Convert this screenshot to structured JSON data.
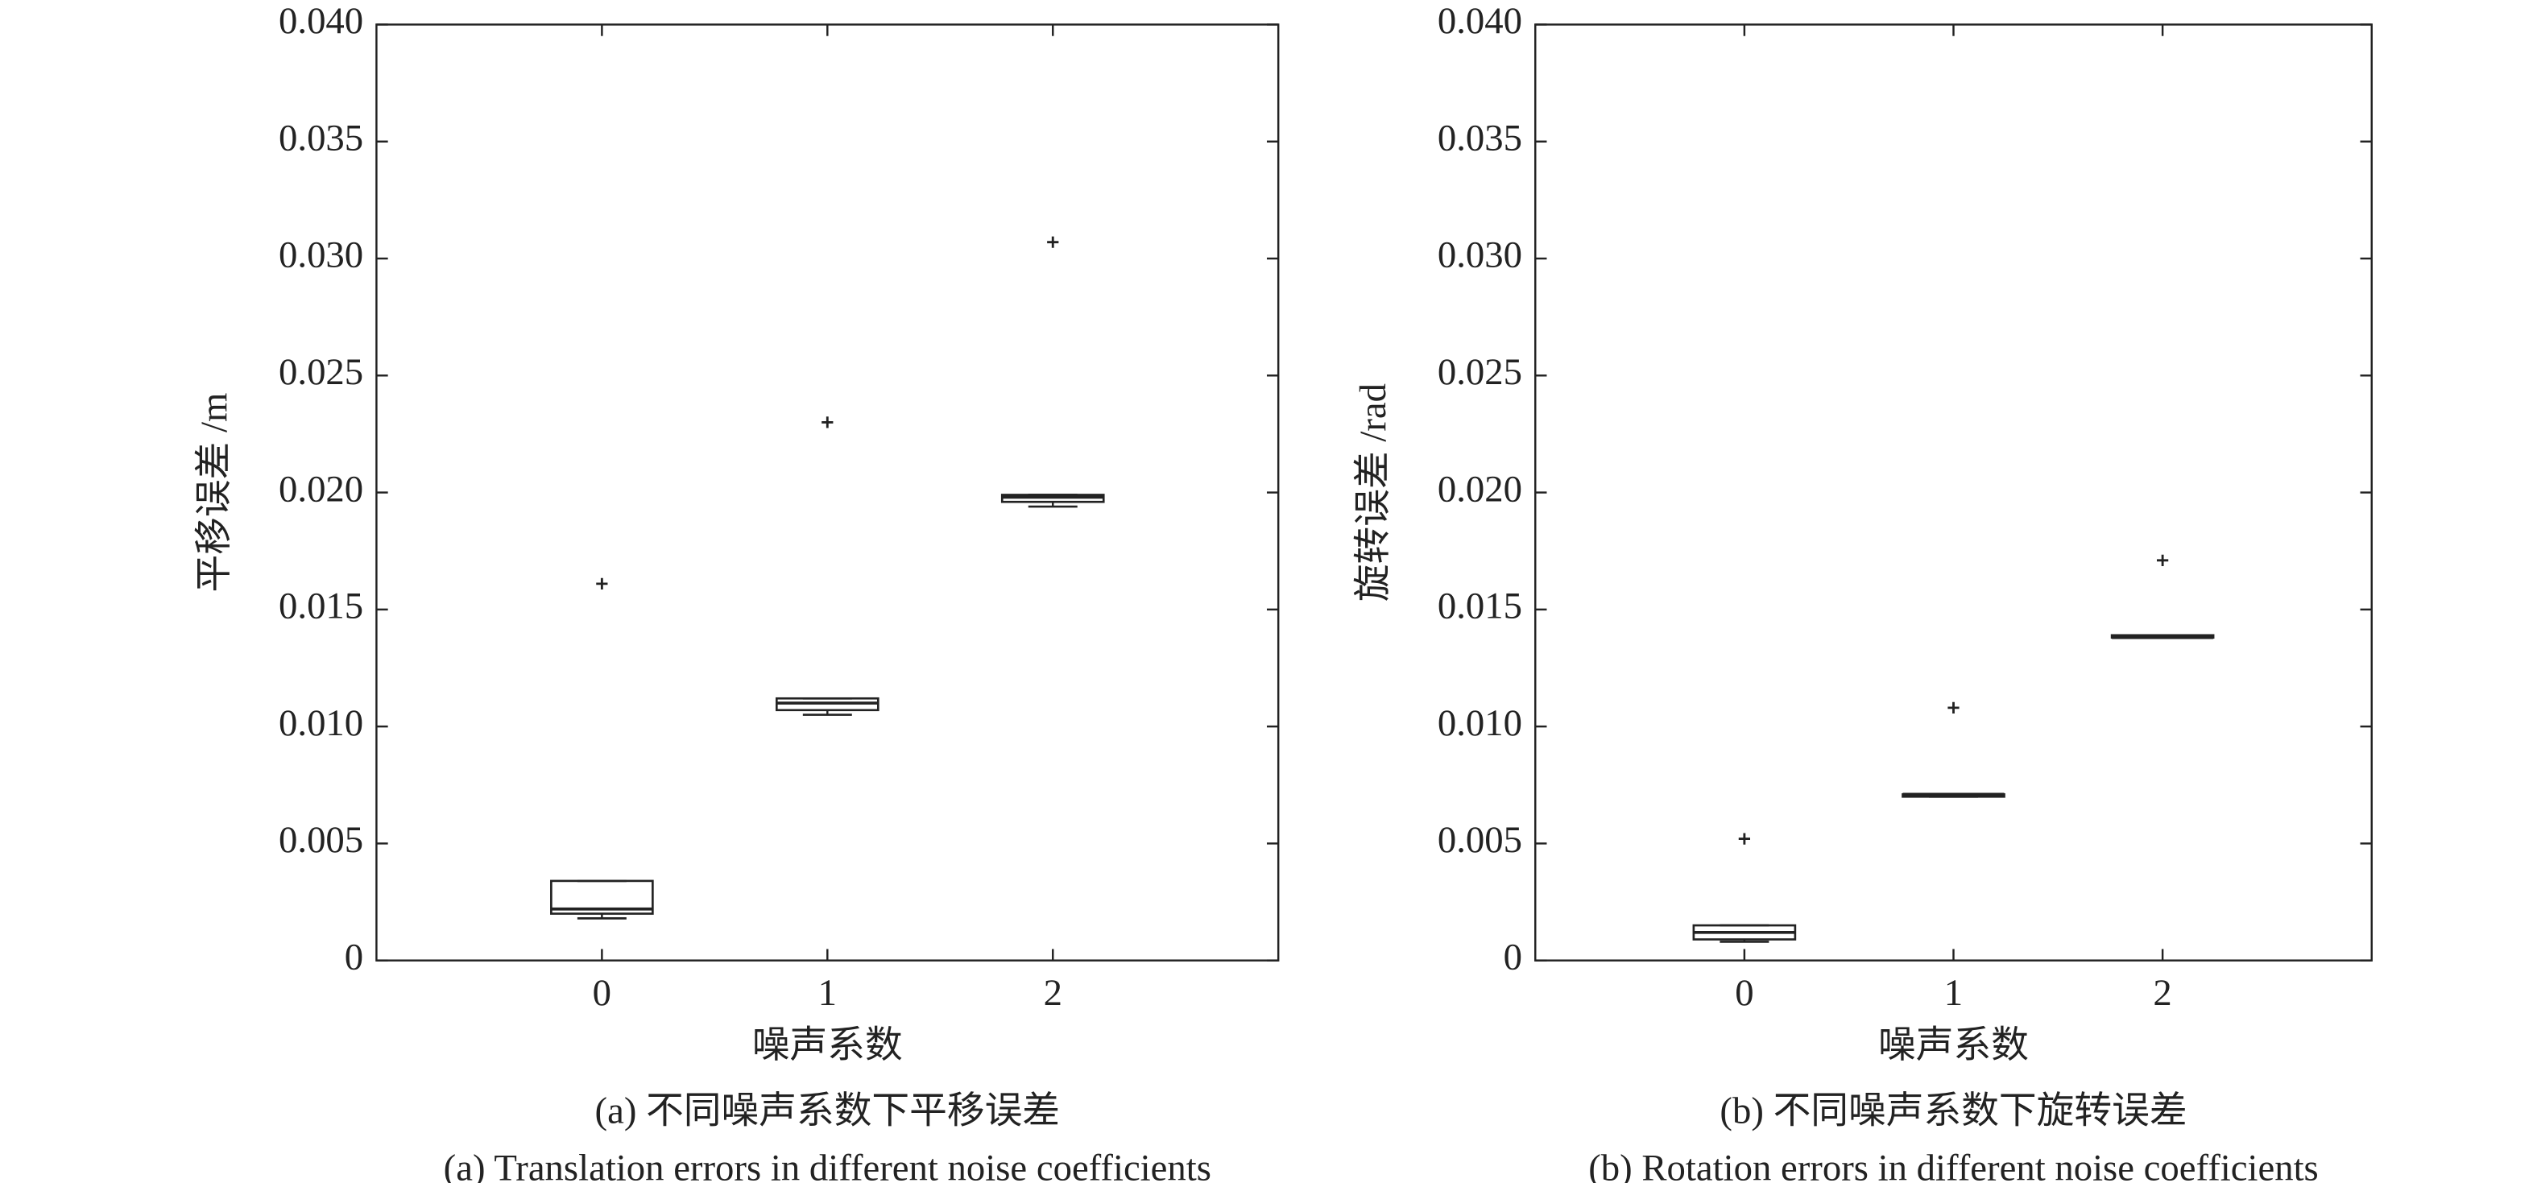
{
  "chart_data": [
    {
      "type": "box",
      "caption": "(a) 不同噪声系数下平移误差",
      "caption_en": "(a) Translation errors in different noise coefficients",
      "x_label": "噪声系数",
      "y_label": "平移误差 /m",
      "categories": [
        "0",
        "1",
        "2"
      ],
      "boxes": [
        {
          "min": 0.0018,
          "q1": 0.002,
          "median": 0.0022,
          "q3": 0.0034,
          "max": 0.0034,
          "outliers": [
            0.0161
          ]
        },
        {
          "min": 0.0105,
          "q1": 0.0107,
          "median": 0.011,
          "q3": 0.0112,
          "max": 0.0112,
          "outliers": [
            0.023
          ]
        },
        {
          "min": 0.0194,
          "q1": 0.0196,
          "median": 0.0198,
          "q3": 0.0199,
          "max": 0.0199,
          "outliers": [
            0.0307
          ]
        }
      ],
      "color": "#222222",
      "ylim": [
        0,
        0.04
      ],
      "yticks": [
        0,
        0.005,
        {
          "value": 0.01,
          "label": "0.010"
        },
        0.015,
        {
          "value": 0.02,
          "label": "0.020"
        },
        0.025,
        {
          "value": 0.03,
          "label": "0.030"
        },
        0.035,
        {
          "value": 0.04,
          "label": "0.040"
        }
      ]
    },
    {
      "type": "box",
      "caption": "(b) 不同噪声系数下旋转误差",
      "caption_en": "(b) Rotation errors in different noise coefficients",
      "x_label": "噪声系数",
      "y_label": "旋转误差 /rad",
      "categories": [
        "0",
        "1",
        "2"
      ],
      "boxes": [
        {
          "min": 0.0008,
          "q1": 0.0009,
          "median": 0.0012,
          "q3": 0.0015,
          "max": 0.0015,
          "outliers": [
            0.0052
          ]
        },
        {
          "min": 0.007,
          "q1": 0.007,
          "median": 0.0071,
          "q3": 0.0071,
          "max": 0.0071,
          "outliers": [
            0.0108
          ]
        },
        {
          "min": 0.0138,
          "q1": 0.0138,
          "median": 0.0138,
          "q3": 0.0139,
          "max": 0.0139,
          "outliers": [
            0.0171
          ]
        }
      ],
      "color": "#222222",
      "ylim": [
        0,
        0.04
      ],
      "yticks": [
        0,
        0.005,
        {
          "value": 0.01,
          "label": "0.010"
        },
        0.015,
        {
          "value": 0.02,
          "label": "0.020"
        },
        0.025,
        {
          "value": 0.03,
          "label": "0.030"
        },
        0.035,
        {
          "value": 0.04,
          "label": "0.040"
        }
      ]
    }
  ]
}
